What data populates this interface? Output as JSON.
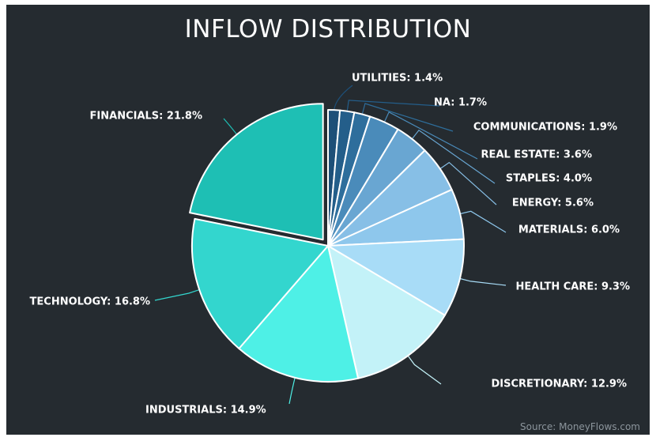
{
  "chart_data": {
    "type": "pie",
    "title": "INFLOW DISTRIBUTION",
    "source": "Source: MoneyFlows.com",
    "exploded": "FINANCIALS",
    "slices": [
      {
        "label": "UTILITIES",
        "value": 1.4,
        "display": "UTILITIES: 1.4%",
        "color": "#1d4f78"
      },
      {
        "label": "NA",
        "value": 1.7,
        "display": "NA: 1.7%",
        "color": "#245e8a"
      },
      {
        "label": "COMMUNICATIONS",
        "value": 1.9,
        "display": "COMMUNICATIONS: 1.9%",
        "color": "#2e6e9c"
      },
      {
        "label": "REAL ESTATE",
        "value": 3.6,
        "display": "REAL ESTATE: 3.6%",
        "color": "#4a8bba"
      },
      {
        "label": "STAPLES",
        "value": 4.0,
        "display": "STAPLES: 4.0%",
        "color": "#69a6d2"
      },
      {
        "label": "ENERGY",
        "value": 5.6,
        "display": "ENERGY: 5.6%",
        "color": "#87bfe6"
      },
      {
        "label": "MATERIALS",
        "value": 6.0,
        "display": "MATERIALS: 6.0%",
        "color": "#8ec7ec"
      },
      {
        "label": "HEALTH CARE",
        "value": 9.3,
        "display": "HEALTH CARE: 9.3%",
        "color": "#a8dcf7"
      },
      {
        "label": "DISCRETIONARY",
        "value": 12.9,
        "display": "DISCRETIONARY: 12.9%",
        "color": "#c3f2f8"
      },
      {
        "label": "INDUSTRIALS",
        "value": 14.9,
        "display": "INDUSTRIALS: 14.9%",
        "color": "#4ef0e6"
      },
      {
        "label": "TECHNOLOGY",
        "value": 16.8,
        "display": "TECHNOLOGY: 16.8%",
        "color": "#33d6ce"
      },
      {
        "label": "FINANCIALS",
        "value": 21.8,
        "display": "FINANCIALS: 21.8%",
        "color": "#1ebfb4"
      }
    ]
  }
}
